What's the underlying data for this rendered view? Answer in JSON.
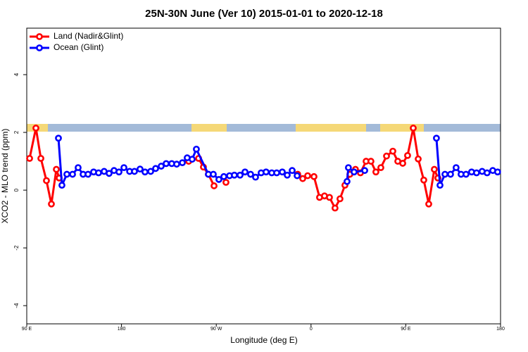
{
  "chart_data": {
    "type": "line",
    "title": "25N-30N June (Ver 10)   2015-01-01 to 2020-12-18",
    "x_label": "Longitude (deg E)",
    "y_label": "XCO2 - MLO trend (ppm)",
    "xlim": [
      90,
      540
    ],
    "ylim": [
      -4.63,
      5.61
    ],
    "xticks": [
      {
        "value": 90,
        "label": "90 E"
      },
      180,
      {
        "value": 270,
        "label": "90 W"
      },
      {
        "value": 360,
        "label": "0"
      },
      {
        "value": 450,
        "label": "90 E"
      },
      {
        "value": 540,
        "label": "180"
      }
    ],
    "yticks": [
      -4,
      -2,
      0,
      2,
      4
    ],
    "legend": "top-left",
    "series": [
      {
        "name": "Land (Nadir&Glint)",
        "color": "#ff0000",
        "x": [
          92.7,
          98.7,
          103.4,
          108.7,
          113.4,
          118.1,
          120.8,
          null,
          243.8,
          253.2,
          257.8,
          262.5,
          267.9,
          null,
          279.2,
          null,
          347.4,
          352.1,
          356.8,
          362.8,
          368.1,
          372.8,
          377.5,
          382.8,
          387.5,
          392.2,
          396.9,
          402.2,
          406.9,
          412.3,
          416.9,
          421.6,
          426.3,
          431.7,
          437.7,
          442.4,
          447.1,
          451.7,
          457.1,
          461.8,
          467.1,
          471.8,
          477.1,
          480.5
        ],
        "values": [
          1.1,
          2.15,
          1.1,
          0.33,
          -0.48,
          0.72,
          0.42,
          null,
          1.0,
          1.1,
          0.8,
          0.55,
          0.15,
          null,
          0.27,
          null,
          0.55,
          0.4,
          0.5,
          0.47,
          -0.25,
          -0.2,
          -0.25,
          -0.62,
          -0.3,
          0.17,
          0.55,
          0.72,
          0.6,
          1.0,
          1.0,
          0.63,
          0.78,
          1.18,
          1.35,
          1.0,
          0.93,
          1.2,
          2.15,
          1.08,
          0.35,
          -0.48,
          0.72,
          0.42
        ]
      },
      {
        "name": "Ocean (Glint)",
        "color": "#0000ff",
        "x": [
          120.1,
          123.4,
          128.1,
          133.5,
          138.8,
          143.5,
          148.2,
          153.5,
          158.2,
          163.5,
          168.2,
          172.9,
          177.6,
          182.3,
          187.7,
          192.3,
          197.6,
          202.3,
          207.7,
          212.4,
          217.7,
          222.4,
          227.7,
          232.4,
          237.8,
          242.4,
          247.1,
          251.1,
          262.5,
          267.2,
          272.5,
          277.2,
          282.6,
          287.2,
          292.6,
          297.3,
          302.6,
          307.3,
          312.6,
          317.3,
          322.7,
          327.4,
          332.7,
          337.4,
          342.1,
          346.8,
          null,
          394.2,
          395.5,
          400.9,
          411.0,
          null,
          479.1,
          482.5,
          487.2,
          492.5,
          497.8,
          502.5,
          507.2,
          512.5,
          517.2,
          522.5,
          527.2,
          532.6,
          537.2
        ],
        "values": [
          1.8,
          0.17,
          0.55,
          0.55,
          0.78,
          0.55,
          0.55,
          0.63,
          0.6,
          0.65,
          0.58,
          0.68,
          0.63,
          0.78,
          0.65,
          0.65,
          0.73,
          0.63,
          0.65,
          0.75,
          0.83,
          0.92,
          0.92,
          0.9,
          0.95,
          1.12,
          1.07,
          1.42,
          0.55,
          0.55,
          0.37,
          0.47,
          0.5,
          0.52,
          0.52,
          0.63,
          0.55,
          0.45,
          0.6,
          0.63,
          0.6,
          0.6,
          0.63,
          0.52,
          0.68,
          0.5,
          null,
          0.3,
          0.78,
          0.63,
          0.68,
          null,
          1.8,
          0.17,
          0.55,
          0.55,
          0.78,
          0.55,
          0.55,
          0.63,
          0.6,
          0.65,
          0.6,
          0.68,
          0.63
        ]
      }
    ]
  }
}
